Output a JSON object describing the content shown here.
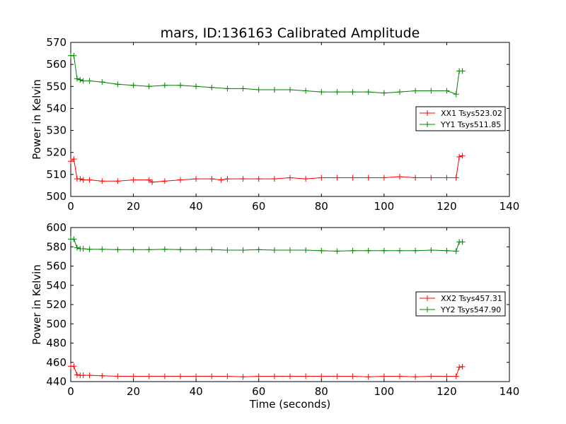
{
  "figure": {
    "title": "mars, ID:136163 Calibrated Amplitude",
    "xlabel": "Time (seconds)"
  },
  "colors": {
    "XX": "#ff0000",
    "YY": "#008000"
  },
  "chart_data": [
    {
      "type": "line",
      "title": "mars, ID:136163 Calibrated Amplitude",
      "xlabel": "",
      "ylabel": "Power in Kelvin",
      "xlim": [
        0,
        140
      ],
      "ylim": [
        500,
        570
      ],
      "xticks": [
        0,
        20,
        40,
        60,
        80,
        100,
        120,
        140
      ],
      "yticks": [
        500,
        510,
        520,
        530,
        540,
        550,
        560,
        570
      ],
      "grid": false,
      "legend_position": "right",
      "marker": "+",
      "series": [
        {
          "name": "XX1 Tsys523.02",
          "color": "#ff0000",
          "x": [
            0,
            1,
            2,
            3,
            4,
            6,
            10,
            15,
            20,
            25,
            26,
            30,
            35,
            40,
            45,
            48,
            50,
            55,
            60,
            65,
            70,
            75,
            80,
            85,
            90,
            95,
            100,
            105,
            110,
            115,
            120,
            123,
            124,
            125
          ],
          "y": [
            516,
            517,
            508,
            508,
            507.5,
            507.5,
            507,
            507,
            507.5,
            507.5,
            506.5,
            507,
            507.5,
            508,
            508,
            507.5,
            508,
            508,
            508,
            508,
            508.5,
            508,
            508.5,
            508.5,
            508.5,
            508.5,
            508.5,
            509,
            508.5,
            508.5,
            508.5,
            508.5,
            518,
            518.5
          ]
        },
        {
          "name": "YY1 Tsys511.85",
          "color": "#008000",
          "x": [
            0,
            1,
            2,
            3,
            4,
            6,
            10,
            15,
            20,
            25,
            30,
            35,
            40,
            45,
            50,
            55,
            60,
            65,
            70,
            75,
            80,
            85,
            90,
            95,
            100,
            105,
            110,
            115,
            120,
            123,
            124,
            125
          ],
          "y": [
            564,
            564,
            553.5,
            553,
            552.5,
            552.5,
            552,
            551,
            550.5,
            550,
            550.5,
            550.5,
            550,
            549.5,
            549,
            549,
            548.5,
            548.5,
            548.5,
            548,
            547.5,
            547.5,
            547.5,
            547.5,
            547,
            547.5,
            548,
            548,
            548,
            546.5,
            557,
            557
          ]
        }
      ]
    },
    {
      "type": "line",
      "title": "",
      "xlabel": "Time (seconds)",
      "ylabel": "Power in Kelvin",
      "xlim": [
        0,
        140
      ],
      "ylim": [
        440,
        600
      ],
      "xticks": [
        0,
        20,
        40,
        60,
        80,
        100,
        120,
        140
      ],
      "yticks": [
        440,
        460,
        480,
        500,
        520,
        540,
        560,
        580,
        600
      ],
      "grid": false,
      "legend_position": "right",
      "marker": "+",
      "series": [
        {
          "name": "XX2 Tsys457.31",
          "color": "#ff0000",
          "x": [
            0,
            1,
            2,
            3,
            4,
            6,
            10,
            15,
            20,
            25,
            30,
            35,
            40,
            45,
            50,
            55,
            60,
            65,
            70,
            75,
            80,
            85,
            90,
            95,
            100,
            105,
            110,
            115,
            120,
            123,
            124,
            125
          ],
          "y": [
            456,
            456,
            447,
            446.5,
            446.5,
            446.5,
            446,
            445.5,
            445.5,
            445.5,
            445.5,
            445.5,
            445.5,
            445.5,
            445.5,
            445,
            445.5,
            445.5,
            445.5,
            445.5,
            445.5,
            445.5,
            445.5,
            445,
            445.5,
            445.5,
            445,
            445.5,
            445.5,
            445.5,
            455,
            455.5
          ]
        },
        {
          "name": "YY2 Tsys547.90",
          "color": "#008000",
          "x": [
            0,
            1,
            2,
            3,
            4,
            6,
            10,
            15,
            20,
            25,
            30,
            35,
            40,
            45,
            50,
            55,
            60,
            65,
            70,
            75,
            80,
            85,
            90,
            95,
            100,
            105,
            110,
            115,
            120,
            123,
            124,
            125
          ],
          "y": [
            588,
            588,
            579,
            578,
            578,
            577.5,
            577.5,
            577,
            577,
            577,
            577.5,
            577,
            577,
            577,
            576.5,
            576.5,
            577,
            576.5,
            576.5,
            576.5,
            576,
            575.5,
            576,
            576,
            576,
            576,
            576,
            576.5,
            576,
            575.5,
            585,
            585
          ]
        }
      ]
    }
  ]
}
